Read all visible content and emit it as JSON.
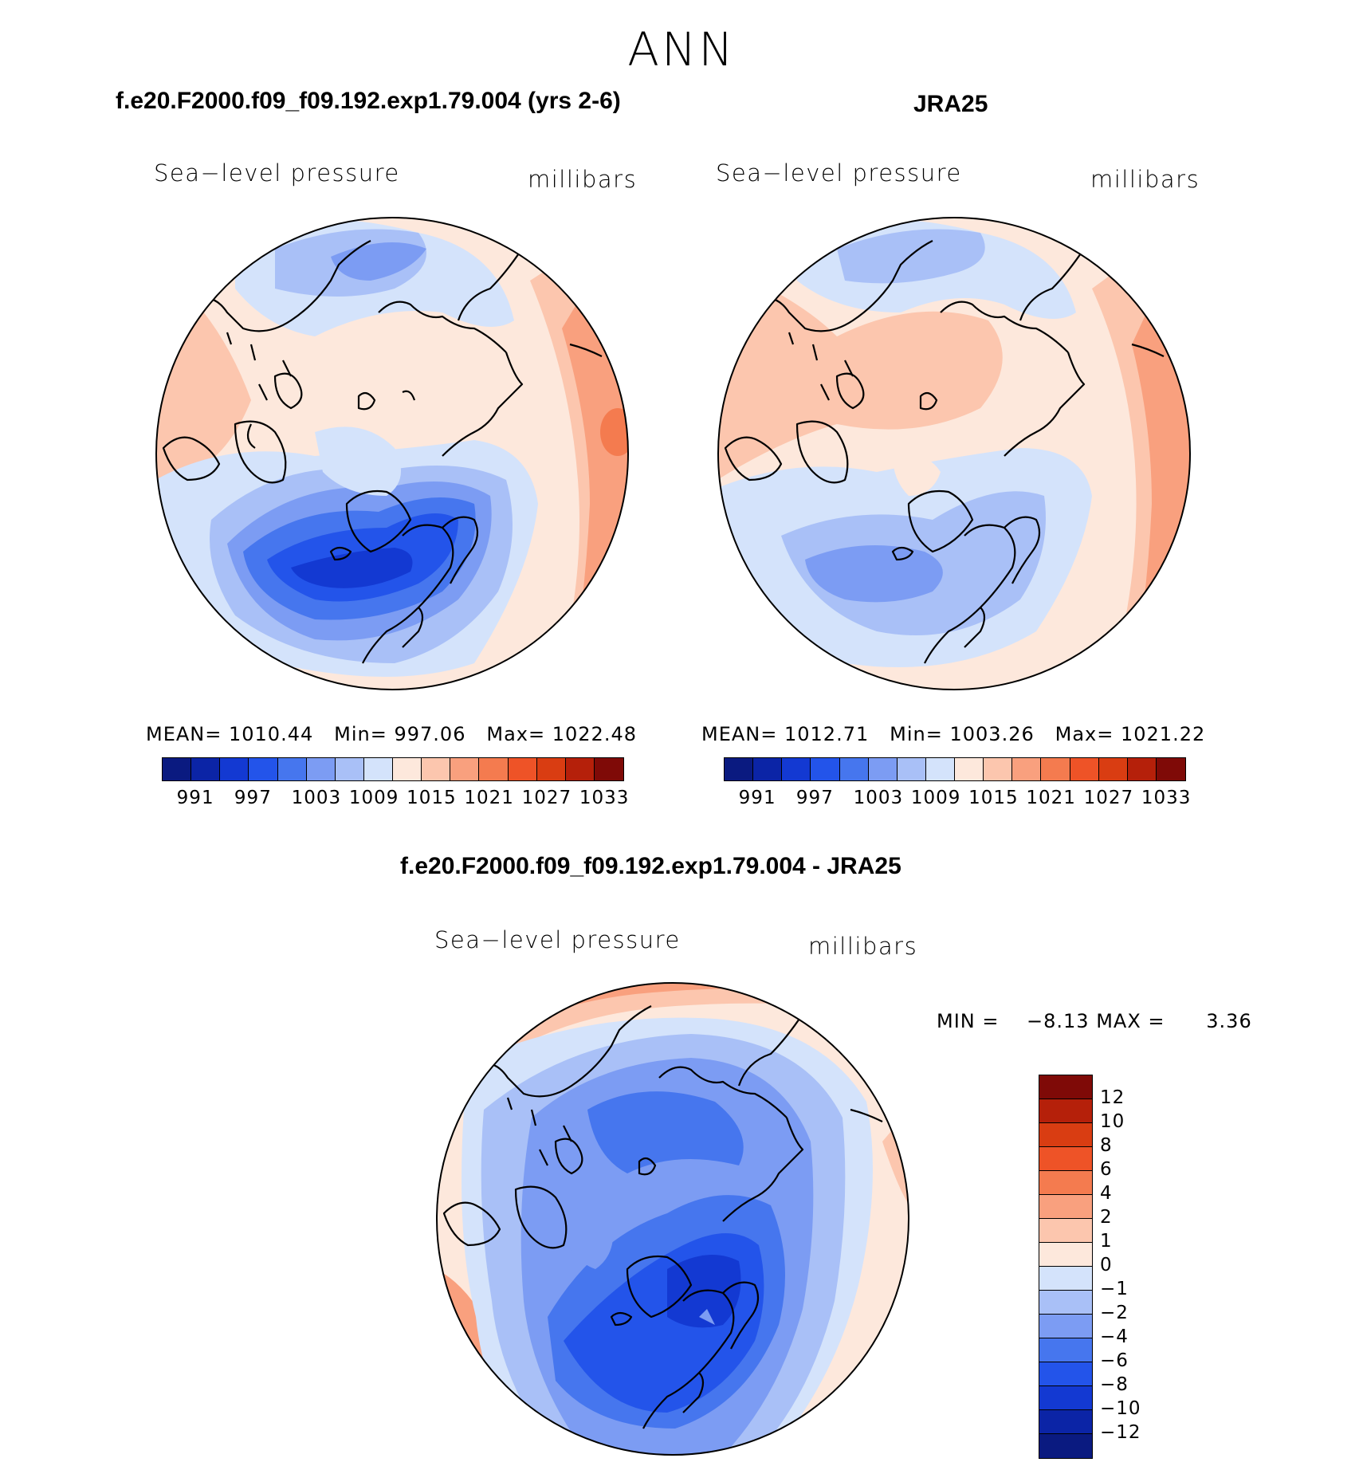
{
  "figure_title": "ANN",
  "panel_left": {
    "case_title": "f.e20.F2000.f09_f09.192.exp1.79.004 (yrs 2-6)",
    "variable": "Sea−level pressure",
    "units": "millibars",
    "stats": {
      "mean_label": "MEAN=",
      "mean": "1010.44",
      "min_label": "Min=",
      "min": "997.06",
      "max_label": "Max=",
      "max": "1022.48"
    }
  },
  "panel_right": {
    "case_title": "JRA25",
    "variable": "Sea−level pressure",
    "units": "millibars",
    "stats": {
      "mean_label": "MEAN=",
      "mean": "1012.71",
      "min_label": "Min=",
      "min": "1003.26",
      "max_label": "Max=",
      "max": "1021.22"
    }
  },
  "abs_colorbar": {
    "colors": [
      "#0a1a80",
      "#0b24a6",
      "#1339d2",
      "#2354ea",
      "#4676ee",
      "#7c9cf3",
      "#a9c0f7",
      "#d4e3fb",
      "#fde8dc",
      "#fcc6ae",
      "#f9a07e",
      "#f47b4f",
      "#ee5327",
      "#d93d12",
      "#b5200a",
      "#7f0a07"
    ],
    "labels": [
      "991",
      "997",
      "1003",
      "1009",
      "1015",
      "1021",
      "1027",
      "1033"
    ]
  },
  "diff_panel": {
    "case_title": "f.e20.F2000.f09_f09.192.exp1.79.004 - JRA25",
    "variable": "Sea−level pressure",
    "units": "millibars",
    "min_label": "MIN =",
    "min": "−8.13",
    "max_label": "MAX =",
    "max": "3.36"
  },
  "diff_colorbar": {
    "colors": [
      "#7f0a07",
      "#b5200a",
      "#d93d12",
      "#ee5327",
      "#f47b4f",
      "#f9a07e",
      "#fcc6ae",
      "#fde8dc",
      "#d4e3fb",
      "#a9c0f7",
      "#7c9cf3",
      "#4676ee",
      "#2354ea",
      "#1339d2",
      "#0b24a6",
      "#0a1a80"
    ],
    "labels": [
      "12",
      "10",
      "8",
      "6",
      "4",
      "2",
      "1",
      "0",
      "−1",
      "−2",
      "−4",
      "−6",
      "−8",
      "−10",
      "−12"
    ]
  },
  "chart_data": [
    {
      "type": "polar-contour-map",
      "title": "f.e20.F2000.f09_f09.192.exp1.79.004 (yrs 2-6)",
      "variable": "Sea-level pressure",
      "units": "millibars",
      "projection": "north-polar-stereographic",
      "contour_levels": [
        991,
        994,
        997,
        1000,
        1003,
        1006,
        1009,
        1012,
        1015,
        1018,
        1021,
        1024,
        1027,
        1030,
        1033
      ],
      "mean": 1010.44,
      "min": 997.06,
      "max": 1022.48
    },
    {
      "type": "polar-contour-map",
      "title": "JRA25",
      "variable": "Sea-level pressure",
      "units": "millibars",
      "projection": "north-polar-stereographic",
      "contour_levels": [
        991,
        994,
        997,
        1000,
        1003,
        1006,
        1009,
        1012,
        1015,
        1018,
        1021,
        1024,
        1027,
        1030,
        1033
      ],
      "mean": 1012.71,
      "min": 1003.26,
      "max": 1021.22
    },
    {
      "type": "polar-contour-map",
      "title": "f.e20.F2000.f09_f09.192.exp1.79.004 - JRA25",
      "variable": "Sea-level pressure",
      "units": "millibars",
      "projection": "north-polar-stereographic",
      "contour_levels": [
        -12,
        -10,
        -8,
        -6,
        -4,
        -2,
        -1,
        0,
        1,
        2,
        4,
        6,
        8,
        10,
        12
      ],
      "min": -8.13,
      "max": 3.36
    }
  ]
}
